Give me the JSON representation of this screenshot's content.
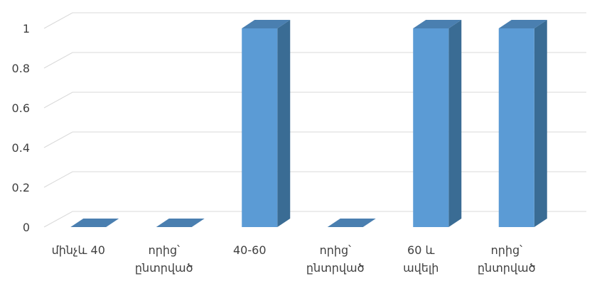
{
  "chart_data": {
    "type": "bar",
    "style": "3d-column",
    "categories": [
      [
        "մինչև 40"
      ],
      [
        "որից՝",
        "ընտրված"
      ],
      [
        "40-60"
      ],
      [
        "որից՝",
        "ընտրված"
      ],
      [
        "60 և",
        "ավելի"
      ],
      [
        "որից՝",
        "ընտրված"
      ]
    ],
    "values": [
      0,
      0,
      1,
      0,
      1,
      1
    ],
    "ylim": [
      0,
      1
    ],
    "yticks": [
      "0",
      "0.2",
      "0.4",
      "0.6",
      "0.8",
      "1"
    ],
    "title": "",
    "xlabel": "",
    "ylabel": "",
    "grid": true,
    "legend": false,
    "colors": {
      "front": "#5b9bd5",
      "side": "#3a6c94",
      "top": "#4a7fb0",
      "grid": "#d9d9d9",
      "text": "#404040"
    }
  }
}
